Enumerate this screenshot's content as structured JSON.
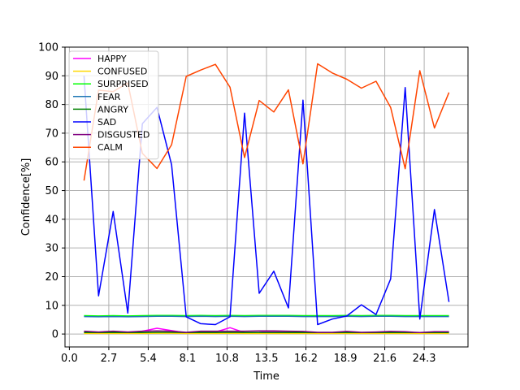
{
  "chart_data": {
    "type": "line",
    "xlabel": "Time",
    "ylabel": "Confidence[%]",
    "xlim": [
      -0.3,
      27.3
    ],
    "ylim": [
      -4.5,
      100
    ],
    "xticks": [
      0.0,
      2.7,
      5.4,
      8.1,
      10.8,
      13.5,
      16.2,
      18.9,
      21.6,
      24.3
    ],
    "xtick_labels": [
      "0.0",
      "2.7",
      "5.4",
      "8.1",
      "10.8",
      "13.5",
      "16.2",
      "18.9",
      "21.6",
      "24.3"
    ],
    "yticks": [
      0,
      10,
      20,
      30,
      40,
      50,
      60,
      70,
      80,
      90,
      100
    ],
    "ytick_labels": [
      "0",
      "10",
      "20",
      "30",
      "40",
      "50",
      "60",
      "70",
      "80",
      "90",
      "100"
    ],
    "grid": true,
    "legend_position": "top-left",
    "x": [
      1,
      2,
      3,
      4,
      5,
      6,
      7,
      8,
      9,
      10,
      11,
      12,
      13,
      14,
      15,
      16,
      17,
      18,
      19,
      20,
      21,
      22,
      23,
      24,
      25,
      26
    ],
    "series": [
      {
        "name": "HAPPY",
        "color": "#ff00ff",
        "values": [
          0.8,
          0.4,
          0.6,
          0.5,
          1.0,
          2.0,
          1.2,
          0.4,
          0.9,
          0.7,
          2.2,
          0.5,
          0.6,
          0.9,
          0.7,
          0.6,
          0.4,
          0.4,
          0.5,
          0.5,
          0.5,
          0.5,
          0.5,
          0.4,
          0.6,
          0.6
        ]
      },
      {
        "name": "CONFUSED",
        "color": "#ffd700",
        "values": [
          0.2,
          0.2,
          0.2,
          0.2,
          0.2,
          0.3,
          0.3,
          0.2,
          0.2,
          0.2,
          0.3,
          0.2,
          0.2,
          0.2,
          0.2,
          0.2,
          0.2,
          0.2,
          0.2,
          0.2,
          0.2,
          0.2,
          0.2,
          0.2,
          0.2,
          0.2
        ]
      },
      {
        "name": "SURPRISED",
        "color": "#00ff00",
        "values": [
          6.4,
          6.3,
          6.4,
          6.3,
          6.4,
          6.5,
          6.5,
          6.4,
          6.5,
          6.4,
          6.5,
          6.4,
          6.5,
          6.5,
          6.5,
          6.4,
          6.4,
          6.4,
          6.5,
          6.4,
          6.5,
          6.5,
          6.4,
          6.4,
          6.4,
          6.4
        ]
      },
      {
        "name": "FEAR",
        "color": "#1f77b4",
        "values": [
          6.1,
          6.0,
          6.1,
          6.0,
          6.1,
          6.2,
          6.2,
          6.1,
          6.2,
          6.1,
          6.2,
          6.1,
          6.2,
          6.2,
          6.2,
          6.1,
          6.1,
          6.1,
          6.2,
          6.1,
          6.2,
          6.2,
          6.1,
          6.1,
          6.1,
          6.1
        ]
      },
      {
        "name": "ANGRY",
        "color": "#008000",
        "values": [
          0.5,
          0.5,
          0.5,
          0.5,
          0.5,
          0.6,
          0.6,
          0.5,
          0.5,
          0.5,
          0.6,
          0.5,
          0.5,
          0.5,
          0.5,
          0.5,
          0.5,
          0.5,
          0.5,
          0.5,
          0.5,
          0.5,
          0.5,
          0.5,
          0.5,
          0.5
        ]
      },
      {
        "name": "SAD",
        "color": "#0000ff",
        "values": [
          90.0,
          13.3,
          42.7,
          7.3,
          73.3,
          79.0,
          59.0,
          6.0,
          3.6,
          3.3,
          6.0,
          77.0,
          14.2,
          21.9,
          9.1,
          81.5,
          3.3,
          5.2,
          6.3,
          10.2,
          6.8,
          19.2,
          85.9,
          5.2,
          43.4,
          11.2
        ]
      },
      {
        "name": "DISGUSTED",
        "color": "#800080",
        "values": [
          1.0,
          0.7,
          1.0,
          0.7,
          1.0,
          1.1,
          1.0,
          0.6,
          1.0,
          1.0,
          1.0,
          1.0,
          1.1,
          1.1,
          1.0,
          0.9,
          0.6,
          0.6,
          0.9,
          0.6,
          0.7,
          0.9,
          0.8,
          0.5,
          0.8,
          0.8
        ]
      },
      {
        "name": "CALM",
        "color": "#ff4500",
        "values": [
          53.5,
          85.0,
          84.5,
          87.5,
          63.0,
          57.7,
          66.0,
          89.8,
          92.0,
          94.0,
          86.0,
          61.5,
          81.4,
          77.4,
          85.1,
          59.3,
          94.2,
          91.0,
          88.8,
          85.7,
          88.1,
          79.0,
          57.6,
          91.8,
          71.8,
          84.2
        ]
      }
    ]
  }
}
